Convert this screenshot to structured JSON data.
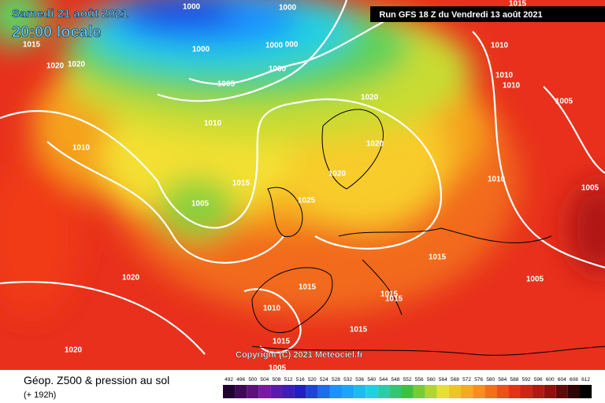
{
  "header": {
    "date": "Samedi 21 août 2021",
    "time": "20:00 locale",
    "run": "Run GFS 18 Z du Vendredi 13 août 2021"
  },
  "copyright": "Copyright (C) 2021 Meteociel.fr",
  "isobar_labels": [
    "1000",
    "1000",
    "1015",
    "1020",
    "1020",
    "1000",
    "1000",
    "000",
    "1000",
    "1005",
    "1010",
    "1010",
    "1020",
    "1020",
    "1020",
    "1015",
    "1025",
    "1005",
    "1015",
    "1010",
    "1010",
    "1010",
    "1005",
    "1010",
    "1005",
    "1015",
    "1020",
    "1005",
    "1015",
    "1015",
    "1015",
    "1010",
    "1015",
    "1015",
    "1005",
    "1020"
  ],
  "footer": {
    "title": "Géop. Z500 & pression au sol",
    "lead": "(+ 192h)"
  },
  "legend": {
    "values": [
      492,
      496,
      500,
      504,
      508,
      512,
      516,
      520,
      524,
      528,
      532,
      536,
      540,
      544,
      548,
      552,
      556,
      560,
      564,
      568,
      572,
      576,
      580,
      584,
      588,
      592,
      596,
      600,
      604,
      608,
      612
    ]
  }
}
